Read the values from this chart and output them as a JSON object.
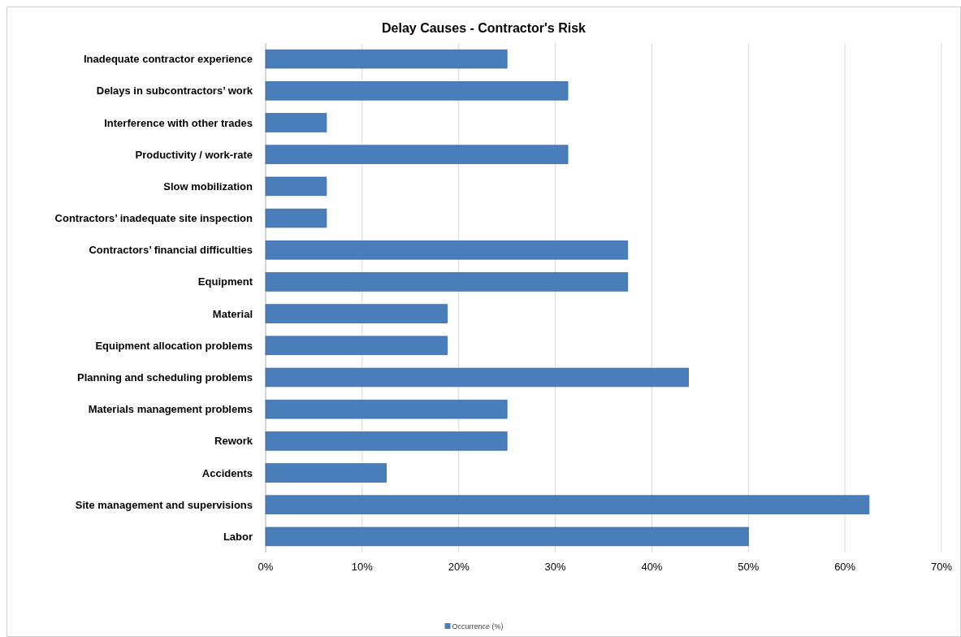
{
  "chart_data": {
    "type": "bar",
    "orientation": "horizontal",
    "title": "Delay Causes - Contractor's Risk",
    "categories": [
      "Inadequate contractor experience",
      "Delays in subcontractors’ work",
      "Interference with other trades",
      "Productivity / work-rate",
      "Slow mobilization",
      "Contractors’ inadequate site inspection",
      "Contractors’ financial difficulties",
      "Equipment",
      "Material",
      "Equipment allocation problems",
      "Planning and scheduling problems",
      "Materials management problems",
      "Rework",
      "Accidents",
      "Site management and supervisions",
      "Labor"
    ],
    "series": [
      {
        "name": "Occurrence (%)",
        "color": "#4a7ebb",
        "values": [
          25,
          31.3,
          6.3,
          31.3,
          6.3,
          6.3,
          37.5,
          37.5,
          18.8,
          18.8,
          43.8,
          25,
          25,
          12.5,
          62.5,
          50
        ]
      }
    ],
    "xlim": [
      0,
      70
    ],
    "xticks": [
      {
        "value": 0,
        "label": "0%"
      },
      {
        "value": 10,
        "label": "10%"
      },
      {
        "value": 20,
        "label": "20%"
      },
      {
        "value": 30,
        "label": "30%"
      },
      {
        "value": 40,
        "label": "40%"
      },
      {
        "value": 50,
        "label": "50%"
      },
      {
        "value": 60,
        "label": "60%"
      },
      {
        "value": 70,
        "label": "70%"
      }
    ],
    "grid": "x",
    "legend": "bottom"
  }
}
